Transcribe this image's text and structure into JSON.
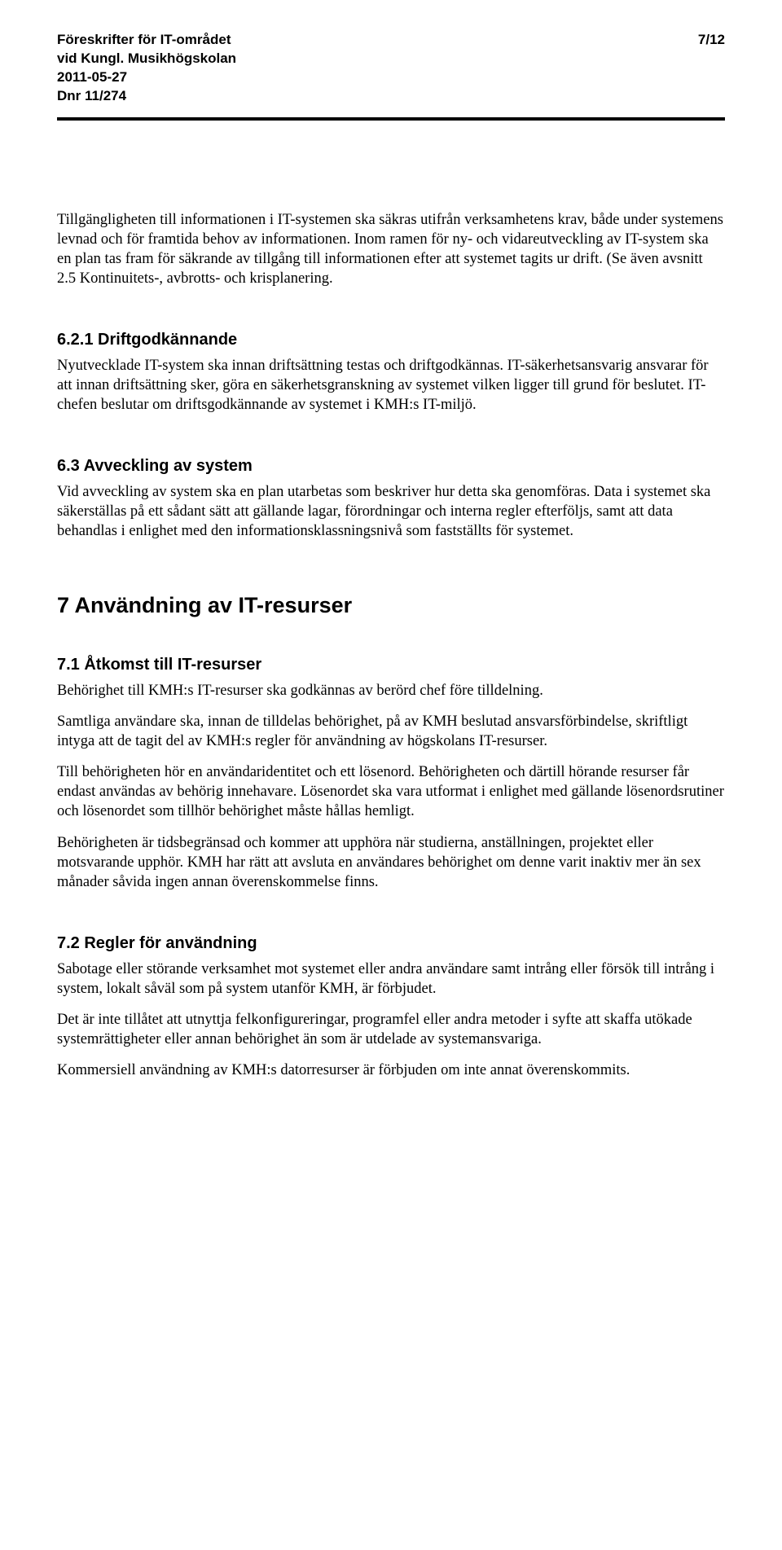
{
  "header": {
    "lines": [
      "Föreskrifter för IT-området",
      "vid Kungl. Musikhögskolan",
      "2011-05-27",
      "Dnr 11/274"
    ],
    "page_number": "7/12"
  },
  "body": {
    "p1": "Tillgängligheten till informationen i IT-systemen ska säkras utifrån verksamhetens krav, både under systemens levnad och för framtida behov av informationen. Inom ramen för ny- och vidareutveckling av IT-system ska en plan tas fram för säkrande av tillgång till informationen efter att systemet tagits ur drift. (Se även avsnitt 2.5 Kontinuitets-, avbrotts- och krisplanering.",
    "s621_title": "6.2.1 Driftgodkännande",
    "s621_p1": "Nyutvecklade IT-system ska innan driftsättning testas och driftgodkännas. IT-säkerhetsansvarig ansvarar för att innan driftsättning sker, göra en säkerhetsgranskning av systemet vilken ligger till grund för beslutet. IT-chefen beslutar om driftsgodkännande av systemet i KMH:s IT-miljö.",
    "s63_title": "6.3 Avveckling av system",
    "s63_p1": "Vid avveckling av system ska en plan utarbetas som beskriver hur detta ska genomföras. Data i systemet ska säkerställas på ett sådant sätt att gällande lagar, förordningar och interna regler efterföljs, samt att data behandlas i enlighet med den informationsklassningsnivå som fastställts för systemet.",
    "s7_title": "7 Användning av IT-resurser",
    "s71_title": "7.1 Åtkomst till IT-resurser",
    "s71_p1": "Behörighet till KMH:s IT-resurser ska godkännas av berörd chef före tilldelning.",
    "s71_p2": "Samtliga användare ska, innan de tilldelas behörighet, på av KMH beslutad ansvarsförbindelse, skriftligt intyga att de tagit del av KMH:s regler för användning av högskolans IT-resurser.",
    "s71_p3": "Till behörigheten hör en användaridentitet och ett lösenord. Behörigheten och därtill hörande resurser får endast användas av behörig innehavare. Lösenordet ska vara utformat i enlighet med gällande lösenordsrutiner och lösenordet som tillhör behörighet måste hållas hemligt.",
    "s71_p4": "Behörigheten är tidsbegränsad och kommer att upphöra när studierna, anställningen, projektet eller motsvarande upphör. KMH har rätt att avsluta en användares behörighet om denne varit inaktiv mer än sex månader såvida ingen annan överenskommelse finns.",
    "s72_title": "7.2 Regler för användning",
    "s72_p1": "Sabotage eller störande verksamhet mot systemet eller andra användare samt intrång eller försök till intrång i system, lokalt såväl som på system utanför KMH, är förbjudet.",
    "s72_p2": "Det är inte tillåtet att utnyttja felkonfigureringar, programfel eller andra metoder i syfte att skaffa utökade systemrättigheter eller annan behörighet än som är utdelade av systemansvariga.",
    "s72_p3": "Kommersiell användning av KMH:s datorresurser är förbjuden om inte annat överenskommits."
  }
}
